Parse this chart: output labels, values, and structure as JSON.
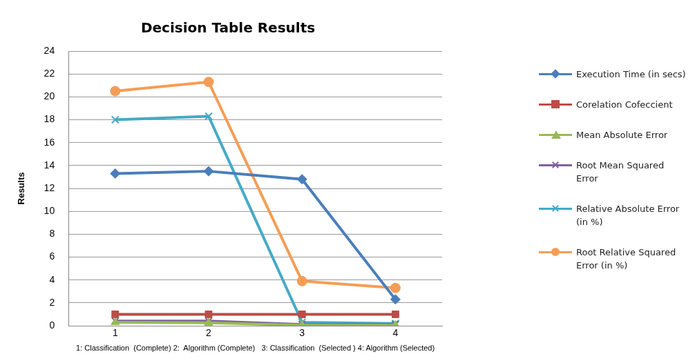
{
  "chart_data": {
    "type": "line",
    "title": "Decision Table Results",
    "xlabel": "1: Classification  (Complete) 2:  Algorithm (Complete)   3: Classification  (Selected ) 4: Algorithm (Selected)",
    "ylabel": "Results",
    "categories": [
      "1",
      "2",
      "3",
      "4"
    ],
    "series": [
      {
        "name": "Execution Time (in secs)",
        "color": "#4a7ebb",
        "marker": "diamond",
        "values": [
          13.3,
          13.5,
          12.8,
          2.3
        ]
      },
      {
        "name": "Corelation Cofeccient",
        "color": "#be4b48",
        "marker": "square",
        "values": [
          1,
          1,
          1,
          1
        ]
      },
      {
        "name": "Mean Absolute Error",
        "color": "#98b954",
        "marker": "triangle",
        "values": [
          0.3,
          0.25,
          0.05,
          0.05
        ]
      },
      {
        "name": "Root Mean Squared Error",
        "color": "#7d60a0",
        "marker": "cross",
        "values": [
          0.4,
          0.4,
          0.1,
          0.1
        ]
      },
      {
        "name": "Relative Absolute Error (in %)",
        "color": "#46aac5",
        "marker": "cross",
        "values": [
          18,
          18.3,
          0.3,
          0.2
        ]
      },
      {
        "name": " Root Relative Squared Error (in %)",
        "color": "#f59d56",
        "marker": "circle",
        "values": [
          20.5,
          21.3,
          3.9,
          3.3
        ]
      }
    ],
    "ylim": [
      0,
      24
    ],
    "yticks": [
      0,
      2,
      4,
      6,
      8,
      10,
      12,
      14,
      16,
      18,
      20,
      22,
      24
    ],
    "grid": "y",
    "legend": "right"
  }
}
